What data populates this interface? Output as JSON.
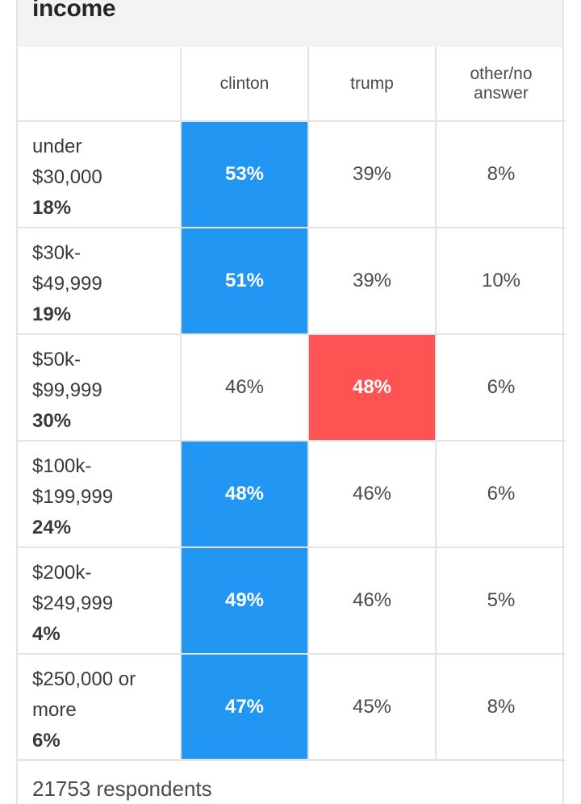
{
  "title": "income",
  "columns": [
    "clinton",
    "trump",
    "other/no\nanswer"
  ],
  "colors": {
    "clinton": "#2196f3",
    "trump": "#ff5252"
  },
  "rows": [
    {
      "label_lines": [
        "under",
        "$30,000"
      ],
      "share": "18%",
      "values": [
        "53%",
        "39%",
        "8%"
      ],
      "winner": "clinton"
    },
    {
      "label_lines": [
        "$30k-",
        "$49,999"
      ],
      "share": "19%",
      "values": [
        "51%",
        "39%",
        "10%"
      ],
      "winner": "clinton"
    },
    {
      "label_lines": [
        "$50k-",
        "$99,999"
      ],
      "share": "30%",
      "values": [
        "46%",
        "48%",
        "6%"
      ],
      "winner": "trump"
    },
    {
      "label_lines": [
        "$100k-",
        "$199,999"
      ],
      "share": "24%",
      "values": [
        "48%",
        "46%",
        "6%"
      ],
      "winner": "clinton"
    },
    {
      "label_lines": [
        "$200k-",
        "$249,999"
      ],
      "share": "4%",
      "values": [
        "49%",
        "46%",
        "5%"
      ],
      "winner": "clinton"
    },
    {
      "label_lines": [
        "$250,000 or",
        "more"
      ],
      "share": "6%",
      "values": [
        "47%",
        "45%",
        "8%"
      ],
      "winner": "clinton"
    }
  ],
  "footer": {
    "respondents": "21753 respondents"
  }
}
